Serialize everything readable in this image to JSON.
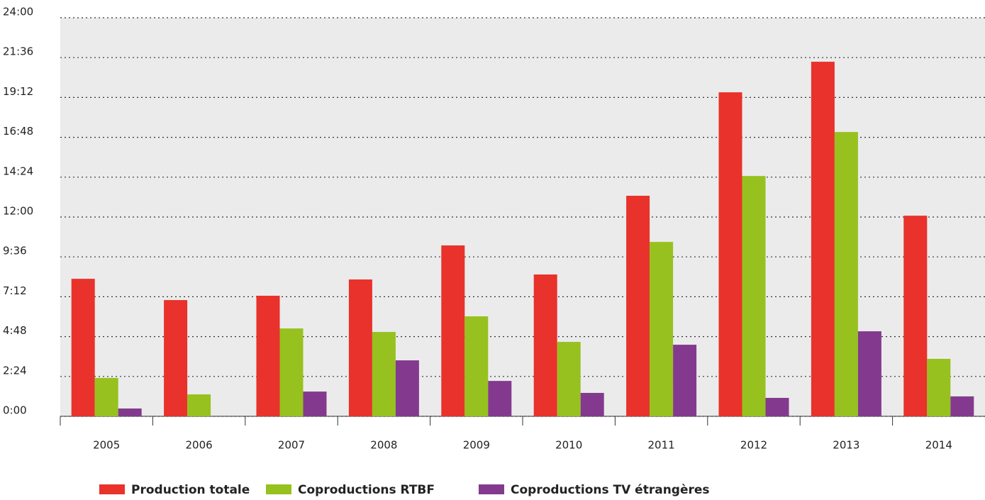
{
  "chart_data": {
    "type": "bar",
    "categories": [
      "2005",
      "2006",
      "2007",
      "2008",
      "2009",
      "2010",
      "2011",
      "2012",
      "2013",
      "2014"
    ],
    "series": [
      {
        "name": "Production totale",
        "color": "#e8322b",
        "values": [
          8.28,
          7.0,
          7.26,
          8.24,
          10.29,
          8.54,
          13.28,
          19.51,
          21.35,
          12.08
        ]
      },
      {
        "name": "Coproductions RTBF",
        "color": "#97c11f",
        "values": [
          2.31,
          1.32,
          5.29,
          5.08,
          6.02,
          4.48,
          10.5,
          14.47,
          17.12,
          3.46
        ]
      },
      {
        "name": "Coproductions TV étrangères",
        "color": "#833a8e",
        "values": [
          0.47,
          0,
          1.49,
          3.37,
          2.13,
          1.41,
          4.31,
          1.11,
          5.12,
          1.2
        ]
      }
    ],
    "ylim": [
      0,
      24
    ],
    "yticks": [
      {
        "value": 0,
        "label": "0:00"
      },
      {
        "value": 2.4,
        "label": "2:24"
      },
      {
        "value": 4.8,
        "label": "4:48"
      },
      {
        "value": 7.2,
        "label": "7:12"
      },
      {
        "value": 9.6,
        "label": "9:36"
      },
      {
        "value": 12,
        "label": "12:00"
      },
      {
        "value": 14.4,
        "label": "14:24"
      },
      {
        "value": 16.8,
        "label": "16:48"
      },
      {
        "value": 19.2,
        "label": "19:12"
      },
      {
        "value": 21.6,
        "label": "21:36"
      },
      {
        "value": 24,
        "label": "24:00"
      }
    ],
    "grid": true
  }
}
